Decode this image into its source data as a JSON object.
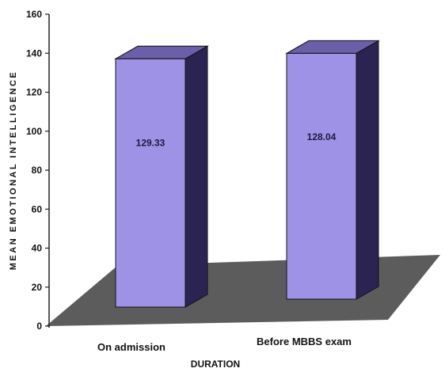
{
  "chart_data": {
    "type": "bar",
    "categories": [
      "On admission",
      "Before MBBS exam"
    ],
    "values": [
      129.33,
      128.04
    ],
    "data_labels": [
      "129.33",
      "128.04"
    ],
    "xlabel": "DURATION",
    "ylabel": "MEAN EMOTIONAL INTELLIGENCE",
    "ylim": [
      0,
      160
    ],
    "yticks": [
      "0",
      "20",
      "40",
      "60",
      "80",
      "100",
      "120",
      "140",
      "160"
    ],
    "grid": false,
    "legend": "none",
    "style": "3d",
    "colors": {
      "bar_front": "#9e92e6",
      "bar_top": "#6a5fa8",
      "bar_side": "#2b2452",
      "floor": "#5c5c5c"
    }
  }
}
